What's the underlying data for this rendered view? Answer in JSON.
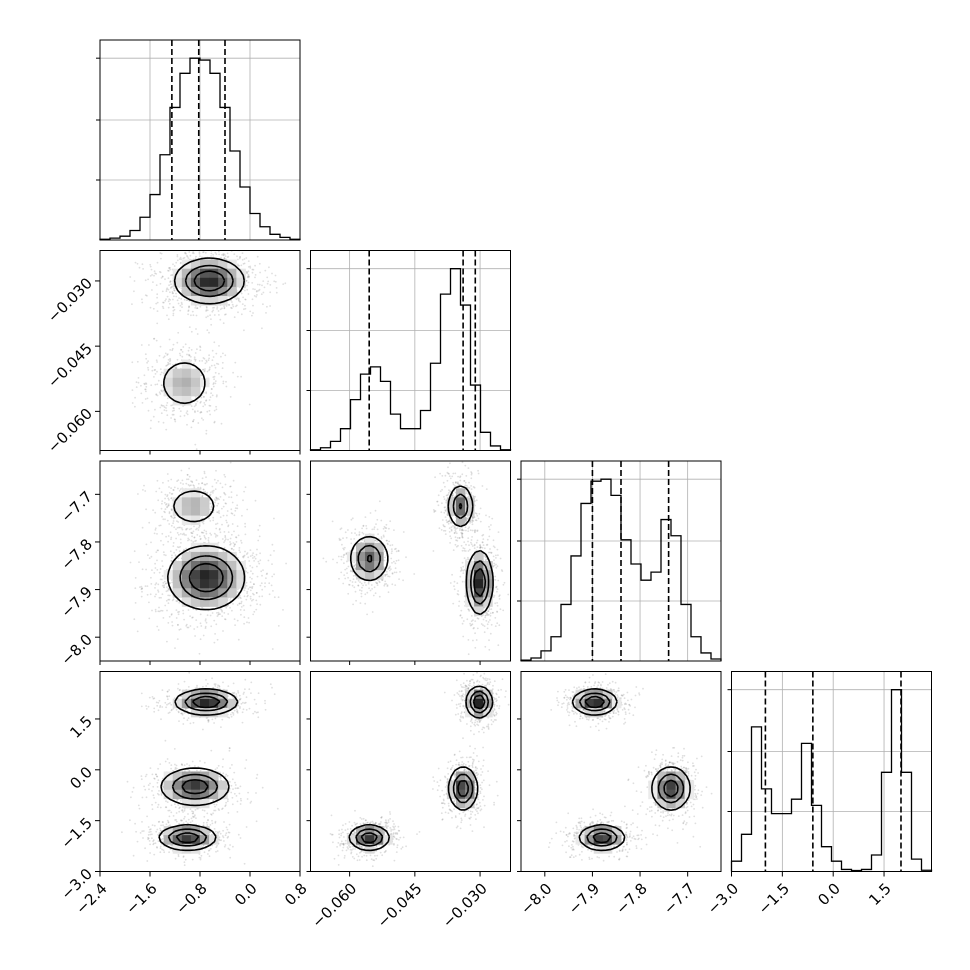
{
  "figure": {
    "background": "#ffffff",
    "line_color": "#000000",
    "grid_color": "#b0b0b0",
    "scatter_color": "#7f7f7f"
  },
  "chart_data": {
    "type": "corner",
    "title": "",
    "parameters": [
      {
        "name": "",
        "range": [
          -2.4,
          0.8
        ],
        "ticks": [
          -2.4,
          -1.6,
          -0.8,
          0.0,
          0.8
        ],
        "tick_labels": [
          "−2.4",
          "−1.6",
          "−0.8",
          "0.0",
          "0.8"
        ],
        "quantiles": [
          -1.25,
          -0.82,
          -0.4
        ],
        "grid": true
      },
      {
        "name": "",
        "range": [
          -0.069,
          -0.023
        ],
        "ticks": [
          -0.06,
          -0.045,
          -0.03
        ],
        "tick_labels": [
          "−0.060",
          "−0.045",
          "−0.030"
        ],
        "quantiles": [
          -0.0555,
          -0.0339,
          -0.0311
        ],
        "grid": true
      },
      {
        "name": "",
        "range": [
          -8.05,
          -7.63
        ],
        "ticks": [
          -8.0,
          -7.9,
          -7.8,
          -7.7
        ],
        "tick_labels": [
          "−8.0",
          "−7.9",
          "−7.8",
          "−7.7"
        ],
        "quantiles": [
          -7.9,
          -7.84,
          -7.74
        ],
        "grid": true
      },
      {
        "name": "",
        "range": [
          -3.0,
          2.9
        ],
        "ticks": [
          -3.0,
          -1.5,
          0.0,
          1.5
        ],
        "tick_labels": [
          "−3.0",
          "−1.5",
          "0.0",
          "1.5"
        ],
        "quantiles": [
          -2.0,
          -0.6,
          2.0
        ],
        "grid": true
      }
    ],
    "histograms": [
      {
        "param": 0,
        "bins": [
          -2.4,
          -2.24,
          -2.08,
          -1.92,
          -1.76,
          -1.6,
          -1.44,
          -1.28,
          -1.12,
          -0.96,
          -0.8,
          -0.64,
          -0.48,
          -0.32,
          -0.16,
          0.0,
          0.16,
          0.32,
          0.48,
          0.64,
          0.8
        ],
        "counts": [
          0.4,
          1.0,
          2.0,
          5.0,
          12.0,
          24.0,
          45.0,
          70.0,
          88.0,
          96.0,
          95.0,
          88.0,
          70.0,
          47.0,
          28.0,
          14.0,
          7.0,
          3.0,
          1.4,
          0.4
        ]
      },
      {
        "param": 1,
        "bins": [
          -0.069,
          -0.0667,
          -0.0644,
          -0.0621,
          -0.0598,
          -0.0575,
          -0.0552,
          -0.0529,
          -0.0506,
          -0.0483,
          -0.046,
          -0.0437,
          -0.0414,
          -0.0391,
          -0.0368,
          -0.0345,
          -0.0322,
          -0.0299,
          -0.0276,
          -0.0253,
          -0.023
        ],
        "counts": [
          0.4,
          1.5,
          5.0,
          12.0,
          28.0,
          42.0,
          46.0,
          38.0,
          20.0,
          12.0,
          12.0,
          22.0,
          48.0,
          86.0,
          100.0,
          80.0,
          36.0,
          10.0,
          2.5,
          0.4
        ]
      },
      {
        "param": 2,
        "bins": [
          -8.05,
          -8.029,
          -8.008,
          -7.987,
          -7.966,
          -7.945,
          -7.924,
          -7.903,
          -7.882,
          -7.861,
          -7.84,
          -7.819,
          -7.798,
          -7.777,
          -7.756,
          -7.735,
          -7.714,
          -7.693,
          -7.672,
          -7.651,
          -7.63
        ],
        "counts": [
          0.4,
          1.5,
          5.0,
          12.0,
          28.0,
          52.0,
          78.0,
          89.0,
          90.0,
          82.0,
          60.0,
          48.0,
          40.0,
          44.0,
          70.0,
          62.0,
          28.0,
          12.0,
          4.0,
          1.0
        ]
      },
      {
        "param": 3,
        "bins": [
          -3.0,
          -2.705,
          -2.41,
          -2.115,
          -1.82,
          -1.525,
          -1.23,
          -0.935,
          -0.64,
          -0.345,
          -0.05,
          0.245,
          0.54,
          0.835,
          1.13,
          1.425,
          1.72,
          2.015,
          2.31,
          2.605,
          2.9
        ],
        "counts": [
          5.0,
          18.0,
          70.0,
          40.0,
          28.0,
          28.0,
          35.0,
          62.0,
          32.0,
          12.0,
          5.0,
          1.0,
          0.5,
          1.0,
          8.0,
          48.0,
          88.0,
          48.0,
          6.0,
          0.6
        ]
      }
    ],
    "joint_modes": [
      {
        "pair": [
          0,
          1
        ],
        "modes": [
          {
            "center": [
              -0.65,
              -0.03
            ],
            "sigma": [
              0.3,
              0.0028
            ],
            "weight": 0.7
          },
          {
            "center": [
              -1.05,
              -0.0535
            ],
            "sigma": [
              0.25,
              0.0035
            ],
            "weight": 0.3
          }
        ]
      },
      {
        "pair": [
          0,
          2
        ],
        "modes": [
          {
            "center": [
              -0.9,
              -7.725
            ],
            "sigma": [
              0.24,
              0.024
            ],
            "weight": 0.3
          },
          {
            "center": [
              -0.7,
              -7.875
            ],
            "sigma": [
              0.33,
              0.036
            ],
            "weight": 0.7
          }
        ]
      },
      {
        "pair": [
          1,
          2
        ],
        "modes": [
          {
            "center": [
              -0.0555,
              -7.835
            ],
            "sigma": [
              0.0025,
              0.027
            ],
            "weight": 0.3
          },
          {
            "center": [
              -0.0345,
              -7.725
            ],
            "sigma": [
              0.0016,
              0.025
            ],
            "weight": 0.3
          },
          {
            "center": [
              -0.0301,
              -7.885
            ],
            "sigma": [
              0.0016,
              0.036
            ],
            "weight": 0.4
          }
        ]
      },
      {
        "pair": [
          0,
          3
        ],
        "modes": [
          {
            "center": [
              -0.7,
              2.0
            ],
            "sigma": [
              0.27,
              0.2
            ],
            "weight": 0.35
          },
          {
            "center": [
              -0.88,
              -0.5
            ],
            "sigma": [
              0.3,
              0.3
            ],
            "weight": 0.32
          },
          {
            "center": [
              -1.0,
              -2.0
            ],
            "sigma": [
              0.25,
              0.2
            ],
            "weight": 0.33
          }
        ]
      },
      {
        "pair": [
          1,
          3
        ],
        "modes": [
          {
            "center": [
              -0.0302,
              2.0
            ],
            "sigma": [
              0.0016,
              0.25
            ],
            "weight": 0.35
          },
          {
            "center": [
              -0.0339,
              -0.55
            ],
            "sigma": [
              0.0018,
              0.35
            ],
            "weight": 0.32
          },
          {
            "center": [
              -0.0555,
              -2.0
            ],
            "sigma": [
              0.0025,
              0.2
            ],
            "weight": 0.33
          }
        ]
      },
      {
        "pair": [
          2,
          3
        ],
        "modes": [
          {
            "center": [
              -7.895,
              2.0
            ],
            "sigma": [
              0.025,
              0.2
            ],
            "weight": 0.35
          },
          {
            "center": [
              -7.735,
              -0.55
            ],
            "sigma": [
              0.022,
              0.35
            ],
            "weight": 0.32
          },
          {
            "center": [
              -7.88,
              -2.0
            ],
            "sigma": [
              0.026,
              0.2
            ],
            "weight": 0.33
          }
        ]
      }
    ],
    "contour_levels": [
      0.18,
      0.45,
      0.72
    ],
    "legend": "none",
    "grid": true
  }
}
